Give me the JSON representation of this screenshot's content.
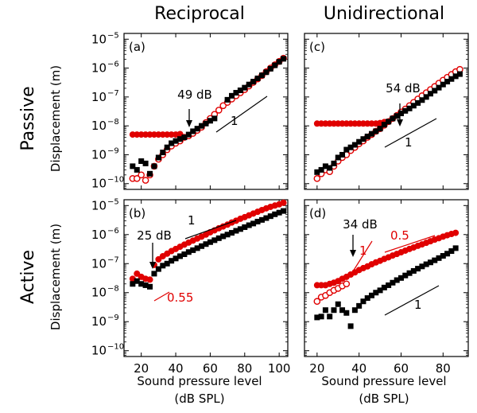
{
  "column_titles": [
    "Reciprocal",
    "Unidirectional"
  ],
  "row_titles": [
    "Passive",
    "Active"
  ],
  "xlabel_line1": "Sound pressure level",
  "xlabel_line2": "(dB SPL)",
  "ylabel": "Displacement (m)",
  "colors": {
    "red": "#e00000",
    "black": "#000000"
  },
  "y_tick_exponents": [
    "-10",
    "-9",
    "-8",
    "-7",
    "-6",
    "-5"
  ],
  "y_tick_base": "10",
  "chart_data": [
    {
      "type": "scatter",
      "panel_label": "(a)",
      "xlim": [
        10,
        105
      ],
      "xticks": [
        20,
        40,
        60,
        80,
        100
      ],
      "ylim_log10": [
        -10.2,
        -4.8
      ],
      "yscale": "log",
      "series": [
        {
          "style": "red-filled-circle",
          "x": [
            15,
            17.5,
            20,
            22.5,
            25,
            27.5,
            30,
            32.5,
            35,
            37.5,
            40,
            42.5
          ],
          "y": [
            5e-09,
            5e-09,
            5e-09,
            5e-09,
            5e-09,
            5e-09,
            5e-09,
            5e-09,
            5e-09,
            5e-09,
            5e-09,
            5.2e-09
          ]
        },
        {
          "style": "red-open-circle",
          "x": [
            15,
            17.5,
            20,
            22.5,
            25,
            27.5,
            30,
            32.5,
            35,
            37.5,
            40,
            42.5,
            45,
            47.5,
            50,
            52.5,
            55,
            57.5,
            60,
            62.5,
            65,
            67.5,
            70,
            72.5,
            75,
            77.5,
            80,
            82.5,
            85,
            87.5,
            90,
            92.5,
            95,
            97.5,
            100,
            102.5
          ],
          "y": [
            1.5e-10,
            1.5e-10,
            2e-10,
            1.3e-10,
            2e-10,
            4e-10,
            7e-10,
            1e-09,
            1.5e-09,
            2e-09,
            2.5e-09,
            3e-09,
            4e-09,
            4.5e-09,
            5.5e-09,
            7e-09,
            9e-09,
            1.3e-08,
            1.8e-08,
            2.5e-08,
            3.5e-08,
            5e-08,
            6.5e-08,
            8.5e-08,
            1.1e-07,
            1.4e-07,
            1.8e-07,
            2.4e-07,
            3.2e-07,
            4.2e-07,
            5.5e-07,
            7.5e-07,
            1e-06,
            1.3e-06,
            1.7e-06,
            2.2e-06
          ]
        },
        {
          "style": "black-square",
          "x": [
            15,
            17.5,
            20,
            22.5,
            25,
            27.5,
            30,
            32.5,
            35,
            37.5,
            40,
            42.5,
            45,
            47.5,
            50,
            52.5,
            55,
            57.5,
            60,
            62.5,
            70,
            72.5,
            75,
            77.5,
            80,
            82.5,
            85,
            87.5,
            90,
            92.5,
            95,
            97.5,
            100,
            102.5
          ],
          "y": [
            4e-10,
            3e-10,
            6e-10,
            5e-10,
            2.2e-10,
            4e-10,
            8e-10,
            1.2e-09,
            1.8e-09,
            2.5e-09,
            3e-09,
            3.5e-09,
            4e-09,
            5e-09,
            6.5e-09,
            8e-09,
            1e-08,
            1.2e-08,
            1.5e-08,
            1.8e-08,
            8e-08,
            1.1e-07,
            1.4e-07,
            1.7e-07,
            2.1e-07,
            2.7e-07,
            3.4e-07,
            4.4e-07,
            5.6e-07,
            7.2e-07,
            9.5e-07,
            1.25e-06,
            1.65e-06,
            2.1e-06
          ]
        }
      ],
      "annotations": [
        {
          "text": "49 dB",
          "kind": "arrow",
          "x": 49,
          "y_log10": -7.2
        },
        {
          "text": "1",
          "kind": "slope",
          "slope": 1
        }
      ]
    },
    {
      "type": "scatter",
      "panel_label": "(b)",
      "xlim": [
        10,
        105
      ],
      "xticks": [
        20,
        40,
        60,
        80,
        100
      ],
      "ylim_log10": [
        -10.2,
        -4.8
      ],
      "yscale": "log",
      "series": [
        {
          "style": "red-filled-circle",
          "x": [
            15,
            17.5,
            20,
            22.5,
            25,
            27.5,
            30,
            32.5,
            35,
            37.5,
            40,
            42.5,
            45,
            47.5,
            50,
            52.5,
            55,
            57.5,
            60,
            62.5,
            65,
            67.5,
            70,
            72.5,
            75,
            77.5,
            80,
            82.5,
            85,
            87.5,
            90,
            92.5,
            95,
            97.5,
            100,
            102.5
          ],
          "y": [
            3e-08,
            4.5e-08,
            3.5e-08,
            3e-08,
            2.8e-08,
            9e-08,
            1.4e-07,
            1.8e-07,
            2.2e-07,
            2.7e-07,
            3.2e-07,
            3.8e-07,
            4.5e-07,
            5.3e-07,
            6.2e-07,
            7.3e-07,
            8.5e-07,
            1e-06,
            1.2e-06,
            1.4e-06,
            1.65e-06,
            1.9e-06,
            2.2e-06,
            2.6e-06,
            3e-06,
            3.5e-06,
            4e-06,
            4.6e-06,
            5.3e-06,
            6.1e-06,
            7e-06,
            8e-06,
            9e-06,
            1e-05,
            1.1e-05,
            1.25e-05
          ]
        },
        {
          "style": "black-square",
          "x": [
            15,
            17.5,
            20,
            22.5,
            25,
            27.5,
            30,
            32.5,
            35,
            37.5,
            40,
            42.5,
            45,
            47.5,
            50,
            52.5,
            55,
            57.5,
            60,
            62.5,
            65,
            67.5,
            70,
            72.5,
            75,
            77.5,
            80,
            82.5,
            85,
            87.5,
            90,
            92.5,
            95,
            97.5,
            100,
            102.5
          ],
          "y": [
            2e-08,
            2.5e-08,
            2e-08,
            1.8e-08,
            1.6e-08,
            4.5e-08,
            6.5e-08,
            8.5e-08,
            1e-07,
            1.25e-07,
            1.5e-07,
            1.8e-07,
            2.1e-07,
            2.5e-07,
            2.9e-07,
            3.4e-07,
            4e-07,
            4.7e-07,
            5.5e-07,
            6.4e-07,
            7.5e-07,
            8.7e-07,
            1e-06,
            1.15e-06,
            1.35e-06,
            1.55e-06,
            1.8e-06,
            2.1e-06,
            2.4e-06,
            2.8e-06,
            3.2e-06,
            3.7e-06,
            4.3e-06,
            5e-06,
            5.7e-06,
            6.5e-06
          ]
        }
      ],
      "annotations": [
        {
          "text": "25 dB",
          "kind": "arrow",
          "x": 25,
          "y_log10": -7.1
        },
        {
          "text": "0.55",
          "kind": "slope",
          "slope": 0.55,
          "color": "red"
        },
        {
          "text": "1",
          "kind": "slope",
          "slope": 1
        }
      ]
    },
    {
      "type": "scatter",
      "panel_label": "(c)",
      "xlim": [
        14,
        92
      ],
      "xticks": [
        20,
        40,
        60,
        80
      ],
      "ylim_log10": [
        -10.2,
        -4.8
      ],
      "yscale": "log",
      "series": [
        {
          "style": "red-filled-circle",
          "x": [
            20,
            22,
            24,
            26,
            28,
            30,
            32,
            34,
            36,
            38,
            40,
            42,
            44,
            46,
            48,
            50,
            52
          ],
          "y": [
            1.2e-08,
            1.2e-08,
            1.2e-08,
            1.2e-08,
            1.2e-08,
            1.2e-08,
            1.2e-08,
            1.2e-08,
            1.2e-08,
            1.2e-08,
            1.2e-08,
            1.2e-08,
            1.2e-08,
            1.2e-08,
            1.2e-08,
            1.25e-08,
            1.35e-08
          ]
        },
        {
          "style": "red-open-circle",
          "x": [
            20,
            22,
            24,
            26,
            28,
            30,
            32,
            34,
            36,
            38,
            40,
            42,
            44,
            46,
            48,
            50,
            52,
            54,
            56,
            58,
            60,
            62,
            64,
            66,
            68,
            70,
            72,
            74,
            76,
            78,
            80,
            82,
            84,
            86,
            88
          ],
          "y": [
            1.5e-10,
            2.2e-10,
            3e-10,
            2.6e-10,
            4e-10,
            6e-10,
            8e-10,
            1e-09,
            1.4e-09,
            1.8e-09,
            2.4e-09,
            3e-09,
            4e-09,
            5e-09,
            6.5e-09,
            8e-09,
            1.05e-08,
            1.4e-08,
            1.8e-08,
            2.3e-08,
            3e-08,
            3.8e-08,
            5e-08,
            6.5e-08,
            8.5e-08,
            1.1e-07,
            1.4e-07,
            1.8e-07,
            2.3e-07,
            3e-07,
            3.8e-07,
            4.8e-07,
            6e-07,
            7.5e-07,
            9e-07
          ]
        },
        {
          "style": "black-square",
          "x": [
            20,
            22,
            24,
            26,
            28,
            30,
            32,
            34,
            36,
            38,
            40,
            42,
            44,
            46,
            48,
            50,
            52,
            54,
            56,
            58,
            60,
            62,
            64,
            66,
            68,
            70,
            72,
            74,
            76,
            78,
            80,
            82,
            84,
            86,
            88
          ],
          "y": [
            2.5e-10,
            3e-10,
            4e-10,
            3.5e-10,
            5e-10,
            8e-10,
            1e-09,
            1.5e-09,
            1.8e-09,
            2.2e-09,
            2.8e-09,
            3.5e-09,
            4.3e-09,
            5.3e-09,
            6.5e-09,
            8e-09,
            1.1e-08,
            1.4e-08,
            1.8e-08,
            2.2e-08,
            2.7e-08,
            3.3e-08,
            4e-08,
            5e-08,
            6.2e-08,
            7.8e-08,
            1e-07,
            1.3e-07,
            1.65e-07,
            2.1e-07,
            2.7e-07,
            3.4e-07,
            4.2e-07,
            5.2e-07,
            6.2e-07
          ]
        }
      ],
      "annotations": [
        {
          "text": "54 dB",
          "kind": "arrow",
          "x": 54,
          "y_log10": -7.3
        },
        {
          "text": "1",
          "kind": "slope",
          "slope": 1
        }
      ]
    },
    {
      "type": "scatter",
      "panel_label": "(d)",
      "xlim": [
        14,
        92
      ],
      "xticks": [
        20,
        40,
        60,
        80
      ],
      "ylim_log10": [
        -10.2,
        -4.8
      ],
      "yscale": "log",
      "series": [
        {
          "style": "red-filled-circle",
          "x": [
            20,
            22,
            24,
            26,
            28,
            30,
            32,
            34,
            36,
            38,
            40,
            42,
            44,
            46,
            48,
            50,
            52,
            54,
            56,
            58,
            60,
            62,
            64,
            66,
            68,
            70,
            72,
            74,
            76,
            78,
            80,
            82,
            84,
            86
          ],
          "y": [
            1.8e-08,
            1.8e-08,
            1.8e-08,
            2e-08,
            2.2e-08,
            2.5e-08,
            3e-08,
            3.5e-08,
            4.2e-08,
            5e-08,
            6e-08,
            7e-08,
            8e-08,
            9.5e-08,
            1.1e-07,
            1.25e-07,
            1.45e-07,
            1.65e-07,
            1.9e-07,
            2.15e-07,
            2.45e-07,
            2.8e-07,
            3.2e-07,
            3.6e-07,
            4.1e-07,
            4.6e-07,
            5.2e-07,
            5.9e-07,
            6.7e-07,
            7.5e-07,
            8.5e-07,
            9.5e-07,
            1.05e-06,
            1.15e-06
          ]
        },
        {
          "style": "red-open-circle",
          "x": [
            20,
            22,
            24,
            26,
            28,
            30,
            32,
            34
          ],
          "y": [
            5e-09,
            7e-09,
            8e-09,
            1e-08,
            1.2e-08,
            1.4e-08,
            1.7e-08,
            2e-08
          ]
        },
        {
          "style": "black-square",
          "x": [
            20,
            22,
            24,
            26,
            28,
            30,
            32,
            34,
            36,
            38,
            40,
            42,
            44,
            46,
            48,
            50,
            52,
            54,
            56,
            58,
            60,
            62,
            64,
            66,
            68,
            70,
            72,
            74,
            76,
            78,
            80,
            82,
            84,
            86
          ],
          "y": [
            1.4e-09,
            1.5e-09,
            2.5e-09,
            1.5e-09,
            2.5e-09,
            4e-09,
            2.5e-09,
            2e-09,
            7e-10,
            2.5e-09,
            3.5e-09,
            5e-09,
            6.5e-09,
            8e-09,
            1e-08,
            1.2e-08,
            1.5e-08,
            1.8e-08,
            2.2e-08,
            2.7e-08,
            3.2e-08,
            3.9e-08,
            4.7e-08,
            5.6e-08,
            6.7e-08,
            8e-08,
            9.5e-08,
            1.1e-07,
            1.3e-07,
            1.55e-07,
            1.85e-07,
            2.2e-07,
            2.7e-07,
            3.4e-07
          ]
        }
      ],
      "annotations": [
        {
          "text": "34 dB",
          "kind": "arrow",
          "x": 34,
          "y_log10": -7.2
        },
        {
          "text": "1",
          "kind": "slope",
          "slope": 1,
          "color": "red"
        },
        {
          "text": "0.5",
          "kind": "slope",
          "slope": 0.5,
          "color": "red"
        },
        {
          "text": "1",
          "kind": "slope",
          "slope": 1
        }
      ]
    }
  ]
}
